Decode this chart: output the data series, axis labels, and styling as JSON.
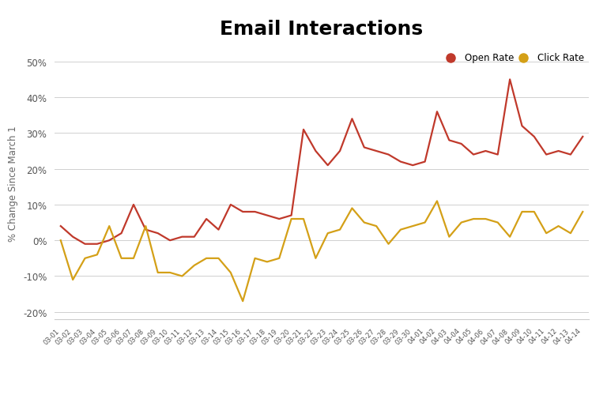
{
  "title": "Email Interactions",
  "ylabel": "% Change Since March 1",
  "title_fontsize": 18,
  "title_fontweight": "bold",
  "ylim": [
    -22,
    54
  ],
  "yticks": [
    -20,
    -10,
    0,
    10,
    20,
    30,
    40,
    50
  ],
  "open_rate_color": "#c0392b",
  "click_rate_color": "#d4a017",
  "bg_color": "#ffffff",
  "line_width": 1.6,
  "dates": [
    "03-01",
    "03-02",
    "03-03",
    "03-04",
    "03-05",
    "03-06",
    "03-07",
    "03-08",
    "03-09",
    "03-10",
    "03-11",
    "03-12",
    "03-13",
    "03-14",
    "03-15",
    "03-16",
    "03-17",
    "03-18",
    "03-19",
    "03-20",
    "03-21",
    "03-22",
    "03-23",
    "03-24",
    "03-25",
    "03-26",
    "03-27",
    "03-28",
    "03-29",
    "03-30",
    "04-01",
    "04-02",
    "04-03",
    "04-04",
    "04-05",
    "04-06",
    "04-07",
    "04-08",
    "04-09",
    "04-10",
    "04-11",
    "04-12",
    "04-13",
    "04-14"
  ],
  "open_rate": [
    4,
    1,
    -1,
    -1,
    0,
    2,
    10,
    3,
    2,
    0,
    1,
    1,
    6,
    3,
    10,
    8,
    8,
    7,
    6,
    7,
    31,
    25,
    21,
    25,
    34,
    26,
    25,
    24,
    22,
    21,
    22,
    36,
    28,
    27,
    24,
    25,
    24,
    45,
    32,
    29,
    24,
    25,
    24,
    29
  ],
  "click_rate": [
    0,
    -11,
    -5,
    -4,
    4,
    -5,
    -5,
    4,
    -9,
    -9,
    -10,
    -7,
    -5,
    -5,
    -9,
    -17,
    -5,
    -6,
    -5,
    6,
    6,
    -5,
    2,
    3,
    9,
    5,
    4,
    -1,
    3,
    4,
    5,
    11,
    1,
    5,
    6,
    6,
    5,
    1,
    8,
    8,
    2,
    4,
    2,
    8
  ]
}
